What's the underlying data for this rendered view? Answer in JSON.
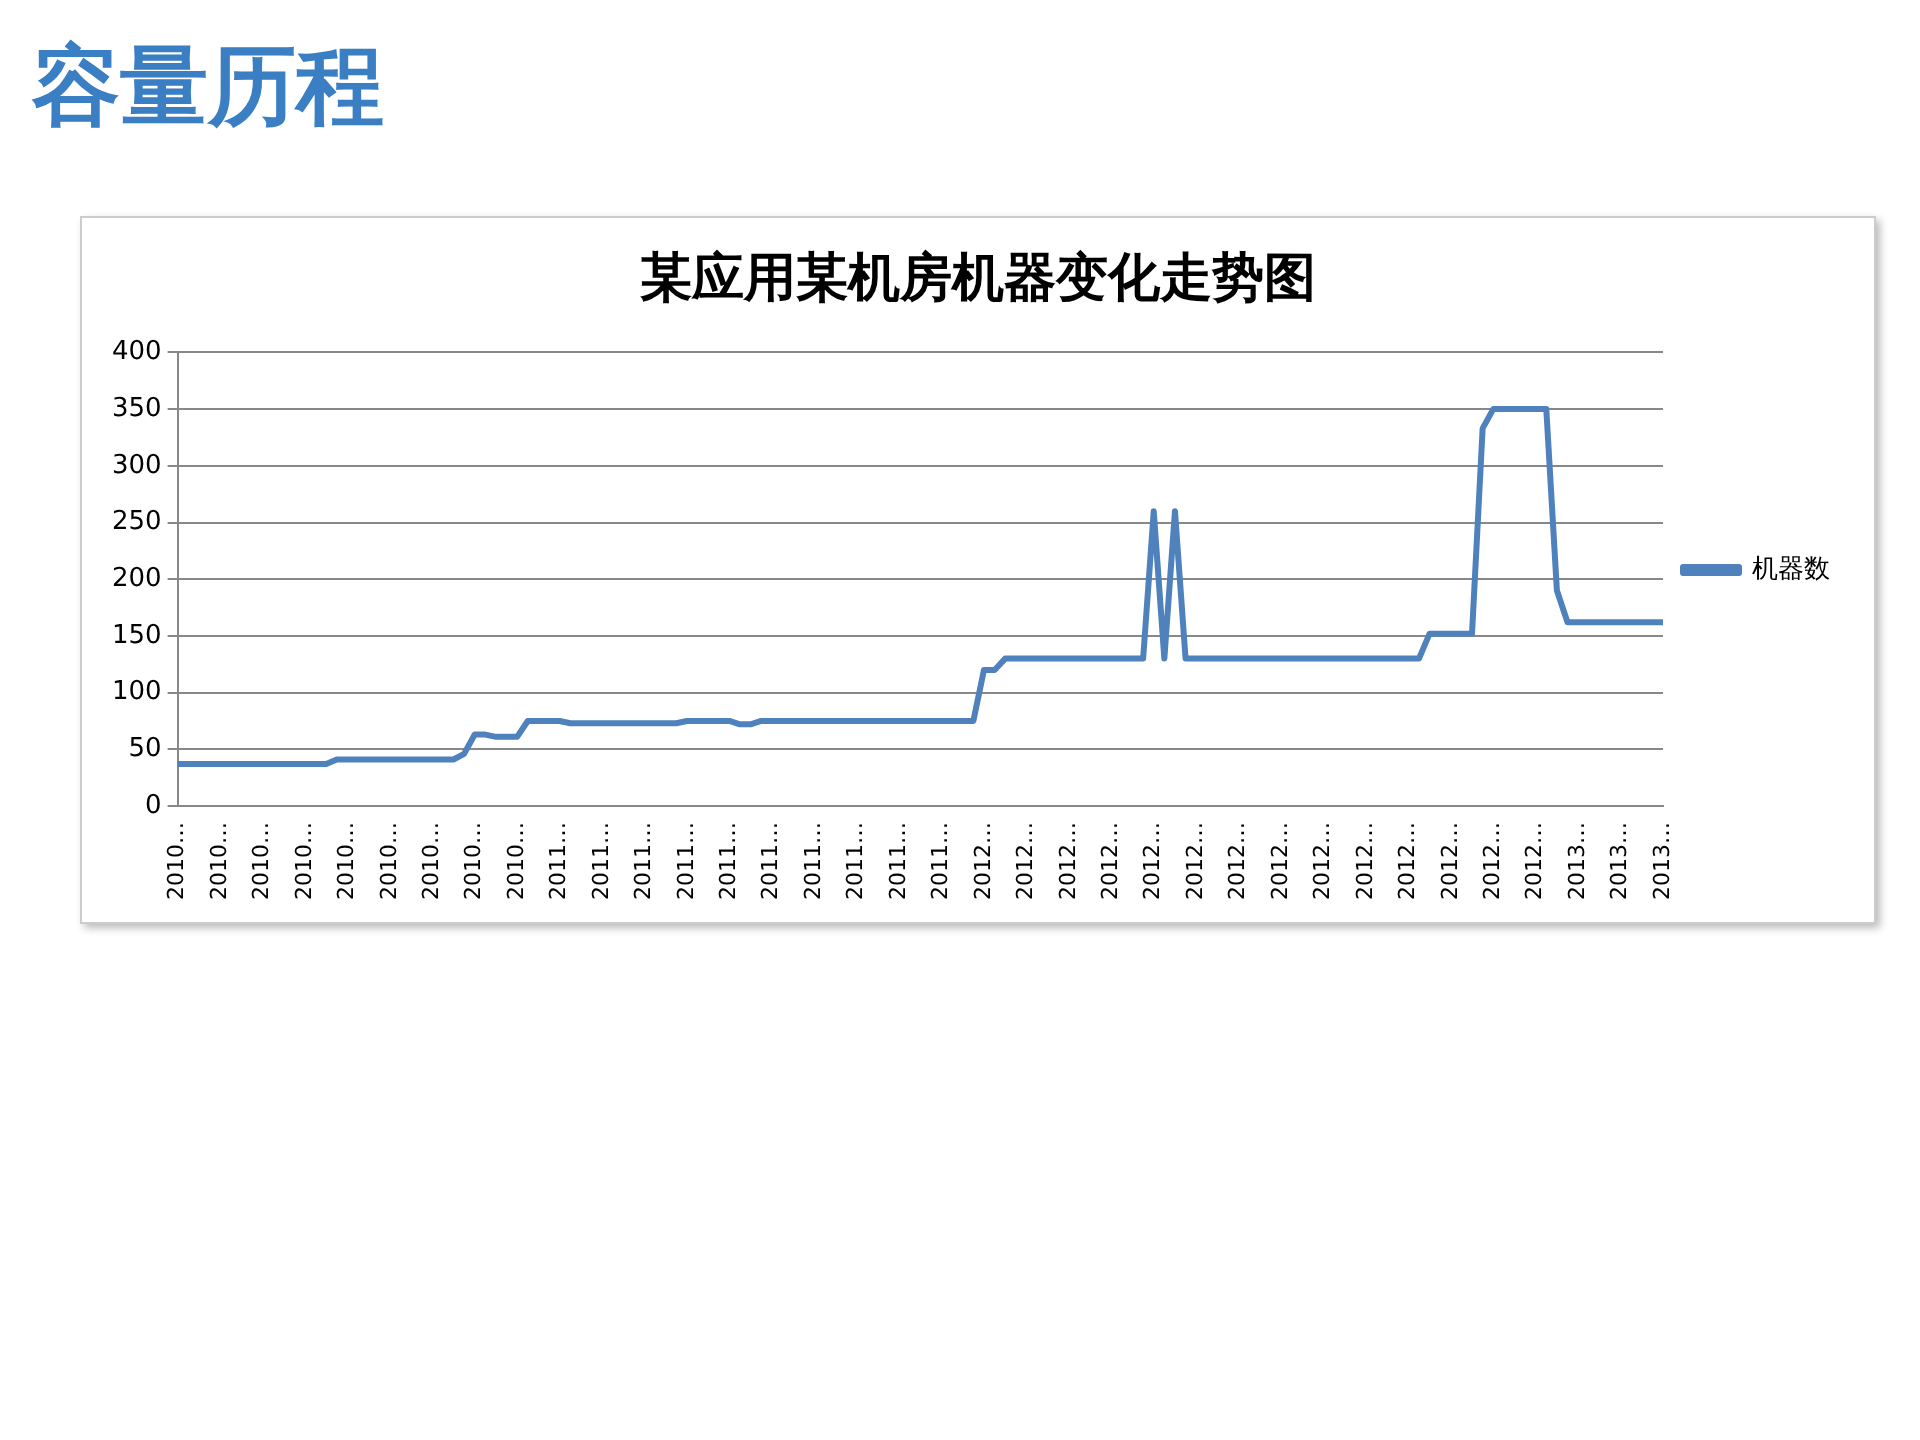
{
  "chart_data": {
    "type": "line",
    "title": "某应用某机房机器变化走势图",
    "annotations": [
      "容量历程"
    ],
    "categories": [
      "2010…",
      null,
      null,
      null,
      "2010…",
      null,
      null,
      null,
      "2010…",
      null,
      null,
      null,
      "2010…",
      null,
      null,
      null,
      "2010…",
      null,
      null,
      null,
      "2010…",
      null,
      null,
      null,
      "2010…",
      null,
      null,
      null,
      "2010…",
      null,
      null,
      null,
      "2010…",
      null,
      null,
      null,
      "2011…",
      null,
      null,
      null,
      "2011…",
      null,
      null,
      null,
      "2011…",
      null,
      null,
      null,
      "2011…",
      null,
      null,
      null,
      "2011…",
      null,
      null,
      null,
      "2011…",
      null,
      null,
      null,
      "2011…",
      null,
      null,
      null,
      "2011…",
      null,
      null,
      null,
      "2011…",
      null,
      null,
      null,
      "2011…",
      null,
      null,
      null,
      "2012…",
      null,
      null,
      null,
      "2012…",
      null,
      null,
      null,
      "2012…",
      null,
      null,
      null,
      "2012…",
      null,
      null,
      null,
      "2012…",
      null,
      null,
      null,
      "2012…",
      null,
      null,
      null,
      "2012…",
      null,
      null,
      null,
      "2012…",
      null,
      null,
      null,
      "2012…",
      null,
      null,
      null,
      "2012…",
      null,
      null,
      null,
      "2012…",
      null,
      null,
      null,
      "2012…",
      null,
      null,
      null,
      "2012…",
      null,
      null,
      null,
      "2012…",
      null,
      null,
      null,
      "2013…",
      null,
      null,
      null,
      "2013…",
      null,
      null,
      null,
      "2013…"
    ],
    "series": [
      {
        "name": "机器数",
        "color": "#4f81bd",
        "values": [
          37,
          37,
          37,
          37,
          37,
          37,
          37,
          37,
          37,
          37,
          37,
          37,
          37,
          37,
          37,
          41,
          41,
          41,
          41,
          41,
          41,
          41,
          41,
          41,
          41,
          41,
          41,
          46,
          63,
          63,
          61,
          61,
          61,
          75,
          75,
          75,
          75,
          73,
          73,
          73,
          73,
          73,
          73,
          73,
          73,
          73,
          73,
          73,
          75,
          75,
          75,
          75,
          75,
          72,
          72,
          75,
          75,
          75,
          75,
          75,
          75,
          75,
          75,
          75,
          75,
          75,
          75,
          75,
          75,
          75,
          75,
          75,
          75,
          75,
          75,
          75,
          120,
          120,
          130,
          130,
          130,
          130,
          130,
          130,
          130,
          130,
          130,
          130,
          130,
          130,
          130,
          130,
          260,
          130,
          260,
          130,
          130,
          130,
          130,
          130,
          130,
          130,
          130,
          130,
          130,
          130,
          130,
          130,
          130,
          130,
          130,
          130,
          130,
          130,
          130,
          130,
          130,
          130,
          152,
          152,
          152,
          152,
          152,
          333,
          350,
          350,
          350,
          350,
          350,
          350,
          190,
          162,
          162,
          162,
          162,
          162,
          162,
          162,
          162,
          162,
          162
        ]
      }
    ],
    "ylim": [
      0,
      400
    ],
    "yticks": [
      0,
      50,
      100,
      150,
      200,
      250,
      300,
      350,
      400
    ],
    "grid": "y",
    "legend": "right",
    "marker": "none",
    "line_style": "solid"
  }
}
